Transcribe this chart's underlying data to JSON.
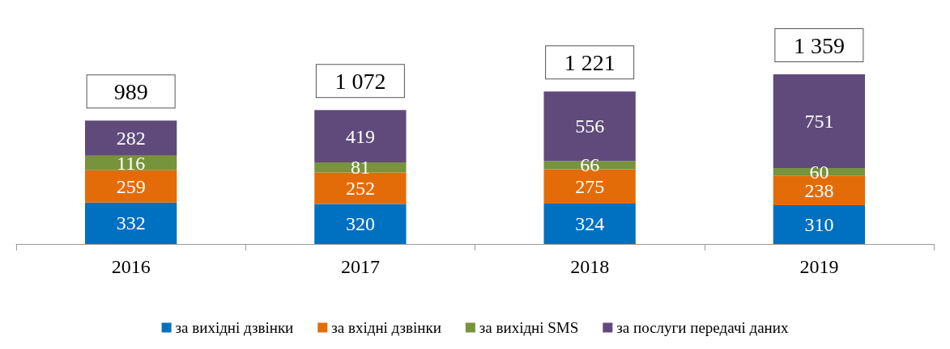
{
  "chart_data": {
    "type": "bar",
    "stacked": true,
    "data_labels": true,
    "legend": "bottom",
    "categories": [
      "2016",
      "2017",
      "2018",
      "2019"
    ],
    "series": [
      {
        "name": "за вихідні дзвінки",
        "color": "#0070c0",
        "values": [
          332,
          320,
          324,
          310
        ]
      },
      {
        "name": "за вхідні дзвінки",
        "color": "#e36c09",
        "values": [
          259,
          252,
          275,
          238
        ]
      },
      {
        "name": "за вихідні SMS",
        "color": "#77933c",
        "values": [
          116,
          81,
          66,
          60
        ]
      },
      {
        "name": "за послуги передачі даних",
        "color": "#604a7b",
        "values": [
          282,
          419,
          556,
          751
        ]
      }
    ],
    "totals": [
      "989",
      "1 072",
      "1 221",
      "1 359"
    ]
  }
}
